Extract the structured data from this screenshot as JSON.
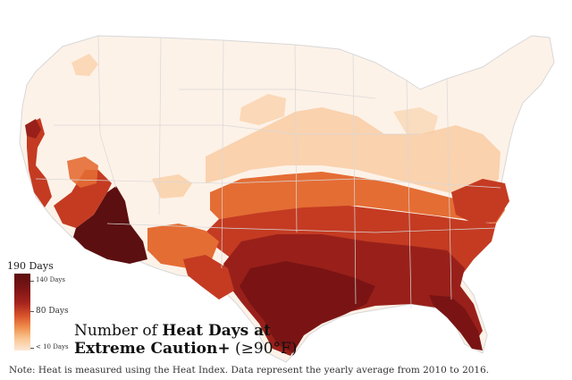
{
  "legend": {
    "title": "190 Days",
    "ticks": [
      {
        "label": "140 Days"
      },
      {
        "label": "80 Days"
      },
      {
        "label": "< 10 Days"
      }
    ]
  },
  "title": {
    "prefix": "Number of ",
    "bold1": "Heat Days at",
    "bold2": "Extreme Caution+",
    "suffix": " (≥90°F)"
  },
  "note": "Note: Heat is measured using the Heat Index. Data represent the yearly average from 2010 to 2016.",
  "colors": {
    "lowest": "#fdf2e8",
    "low": "#f9cda3",
    "mid_low": "#f3a266",
    "mid": "#e46d34",
    "high": "#c43b22",
    "very_high": "#99201a",
    "highest": "#5c0f10",
    "border": "#bdbdbd"
  }
}
